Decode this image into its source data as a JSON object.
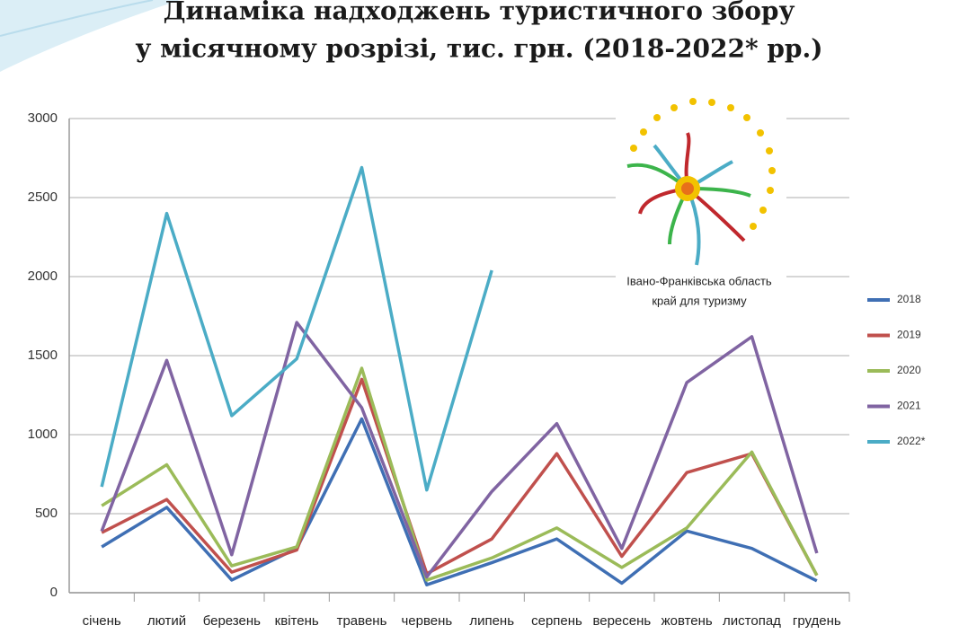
{
  "chart_data": {
    "type": "line",
    "title": "Динаміка надходжень туристичного збору",
    "subtitle": "у місячному розрізі, тис. грн. (2018-2022* рр.)",
    "categories": [
      "січень",
      "лютий",
      "березень",
      "квітень",
      "травень",
      "червень",
      "липень",
      "серпень",
      "вересень",
      "жовтень",
      "листопад",
      "грудень"
    ],
    "series": [
      {
        "name": "2018",
        "color": "#3f6fb4",
        "values": [
          290,
          540,
          80,
          280,
          1100,
          50,
          190,
          340,
          60,
          390,
          280,
          75
        ]
      },
      {
        "name": "2019",
        "color": "#c0504d",
        "values": [
          380,
          590,
          130,
          270,
          1350,
          120,
          340,
          880,
          230,
          760,
          880,
          110
        ]
      },
      {
        "name": "2020",
        "color": "#9bbb59",
        "values": [
          550,
          810,
          170,
          290,
          1420,
          80,
          220,
          410,
          160,
          410,
          890,
          110
        ]
      },
      {
        "name": "2021",
        "color": "#8064a2",
        "values": [
          390,
          1470,
          240,
          1710,
          1170,
          100,
          640,
          1070,
          280,
          1330,
          1620,
          250
        ]
      },
      {
        "name": "2022*",
        "color": "#4bacc6",
        "values": [
          670,
          2400,
          1120,
          1480,
          2690,
          650,
          2040,
          null,
          null,
          null,
          null,
          null
        ]
      }
    ],
    "ylim": [
      0,
      3000
    ],
    "yticks": [
      0,
      500,
      1000,
      1500,
      2000,
      2500,
      3000
    ],
    "grid": true,
    "legend": "right"
  },
  "logo": {
    "lines": [
      "Івано-Франківська область",
      "край для туризму"
    ]
  }
}
